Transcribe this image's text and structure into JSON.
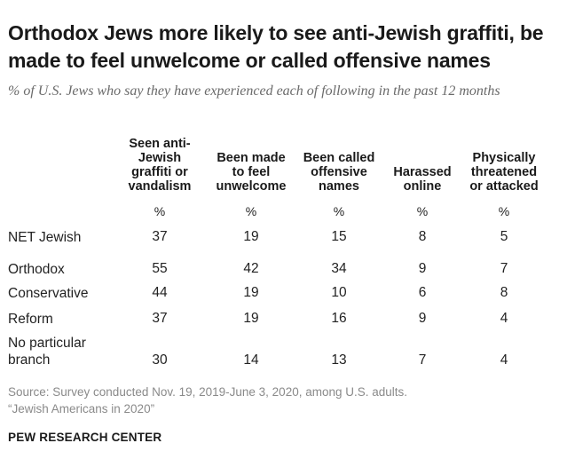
{
  "title": "Orthodox Jews more likely to see anti-Jewish graffiti, be made to feel unwelcome or called offensive names",
  "subtitle": "% of U.S. Jews who say they have experienced each of following in the past 12 months",
  "chart_data": {
    "type": "table",
    "columns": [
      {
        "name": "Seen anti-Jewish graffiti or vandalism",
        "lines": [
          "Seen anti-",
          "Jewish",
          "graffiti or",
          "vandalism"
        ],
        "unit": "%"
      },
      {
        "name": "Been made to feel unwelcome",
        "lines": [
          "Been made",
          "to feel",
          "unwelcome"
        ],
        "unit": "%"
      },
      {
        "name": "Been called offensive names",
        "lines": [
          "Been called",
          "offensive",
          "names"
        ],
        "unit": "%"
      },
      {
        "name": "Harassed online",
        "lines": [
          "Harassed",
          "online"
        ],
        "unit": "%"
      },
      {
        "name": "Physically threatened or attacked",
        "lines": [
          "Physically",
          "threatened",
          "or attacked"
        ],
        "unit": "%"
      }
    ],
    "rows": [
      {
        "label": "NET Jewish",
        "values": [
          37,
          19,
          15,
          8,
          5
        ]
      },
      {
        "label": "Orthodox",
        "values": [
          55,
          42,
          34,
          9,
          7
        ]
      },
      {
        "label": "Conservative",
        "values": [
          44,
          19,
          10,
          6,
          8
        ]
      },
      {
        "label": "Reform",
        "values": [
          37,
          19,
          16,
          9,
          4
        ]
      },
      {
        "label": "No particular branch",
        "label_lines": [
          "No particular",
          "branch"
        ],
        "values": [
          30,
          14,
          13,
          7,
          4
        ]
      }
    ]
  },
  "source": {
    "line1": "Source: Survey conducted Nov. 19, 2019-June 3, 2020, among U.S. adults.",
    "line2": "“Jewish Americans in 2020”"
  },
  "brand": "PEW RESEARCH CENTER"
}
